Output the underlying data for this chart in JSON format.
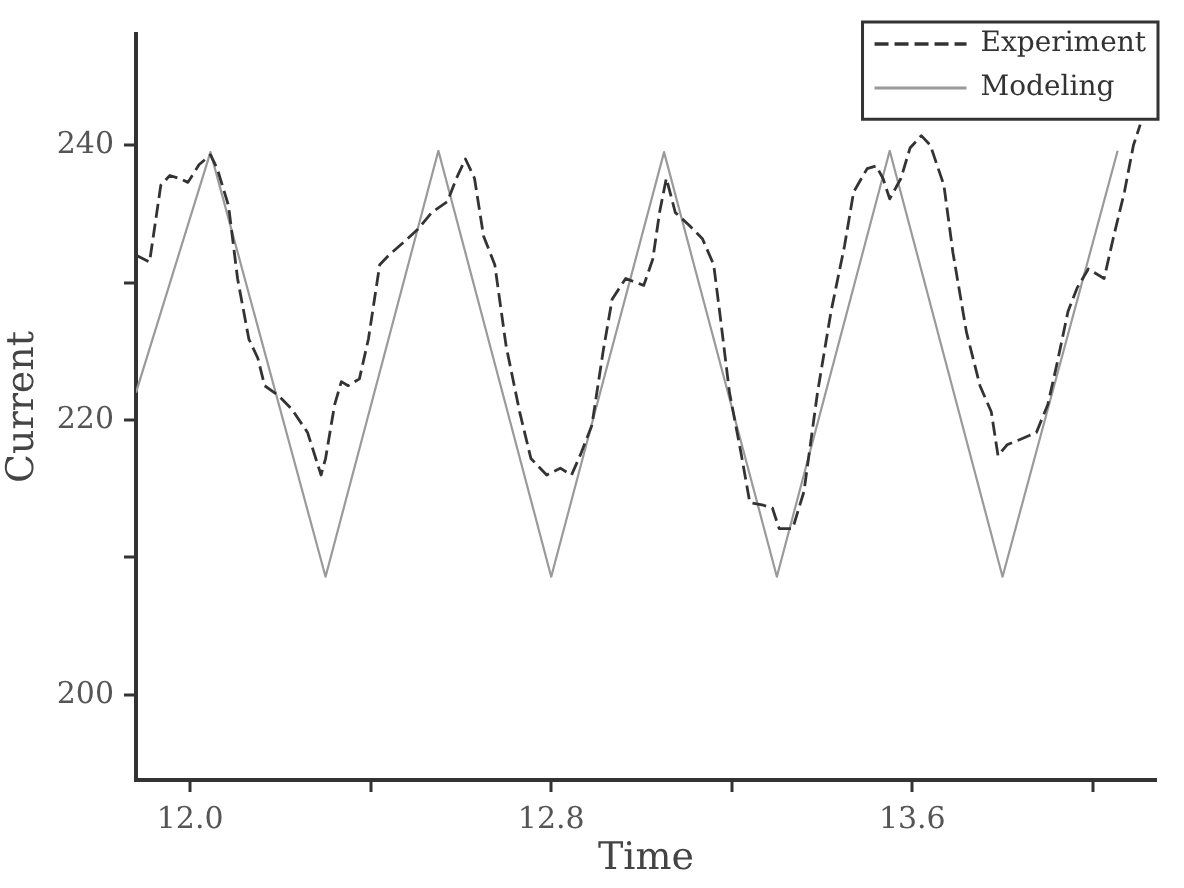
{
  "chart_data": {
    "type": "line",
    "xlabel": "Time",
    "ylabel": "Current",
    "xlim": [
      11.88,
      14.14
    ],
    "ylim": [
      193.8,
      248.1
    ],
    "xticks": [
      {
        "value": 12.0,
        "label": "12.0"
      },
      {
        "value": 12.4,
        "label": null
      },
      12.8,
      {
        "value": 13.2,
        "label": null
      },
      13.6,
      {
        "value": 14.0,
        "label": null
      }
    ],
    "yticks": [
      200,
      {
        "value": 210,
        "label": null
      },
      220,
      {
        "value": 230,
        "label": null
      },
      240
    ],
    "legend": "top right",
    "series": [
      {
        "name": "Experiment",
        "color": "#333333",
        "line_style": "dashed",
        "x": [
          11.88,
          11.91,
          11.935,
          11.955,
          11.975,
          11.995,
          12.02,
          12.045,
          12.06,
          12.085,
          12.105,
          12.13,
          12.15,
          12.165,
          12.195,
          12.225,
          12.26,
          12.29,
          12.3,
          12.32,
          12.335,
          12.35,
          12.375,
          12.395,
          12.42,
          12.44,
          12.475,
          12.505,
          12.535,
          12.57,
          12.59,
          12.61,
          12.63,
          12.65,
          12.675,
          12.7,
          12.73,
          12.755,
          12.79,
          12.82,
          12.845,
          12.865,
          12.89,
          12.915,
          12.935,
          12.965,
          13.005,
          13.025,
          13.04,
          13.055,
          13.075,
          13.105,
          13.135,
          13.16,
          13.175,
          13.195,
          13.22,
          13.24,
          13.27,
          13.29,
          13.305,
          13.335,
          13.36,
          13.39,
          13.42,
          13.45,
          13.47,
          13.5,
          13.52,
          13.535,
          13.55,
          13.575,
          13.595,
          13.62,
          13.64,
          13.67,
          13.69,
          13.72,
          13.75,
          13.775,
          13.79,
          13.81,
          13.84,
          13.875,
          13.9,
          13.92,
          13.945,
          13.965,
          13.99,
          14.025,
          14.045,
          14.07,
          14.09,
          14.105
        ],
        "values": [
          232.0,
          231.5,
          237.1,
          237.8,
          237.6,
          237.3,
          238.6,
          239.3,
          238.3,
          235.6,
          230.3,
          225.9,
          224.5,
          222.5,
          221.8,
          220.8,
          219.1,
          216.0,
          217.2,
          221.1,
          222.8,
          222.5,
          223.0,
          225.9,
          231.3,
          232.0,
          233.0,
          233.9,
          235.1,
          235.9,
          237.6,
          239.0,
          237.6,
          233.4,
          231.3,
          225.4,
          220.6,
          217.2,
          216.0,
          216.5,
          216.0,
          217.5,
          219.6,
          225.0,
          228.8,
          230.3,
          229.8,
          231.7,
          235.1,
          237.6,
          235.1,
          234.2,
          233.2,
          231.3,
          227.4,
          222.0,
          217.7,
          214.0,
          213.8,
          213.6,
          212.1,
          212.1,
          214.8,
          222.0,
          227.9,
          232.7,
          236.6,
          238.3,
          238.5,
          237.6,
          236.1,
          237.6,
          239.8,
          240.7,
          240.0,
          237.1,
          232.2,
          226.4,
          222.5,
          220.6,
          217.4,
          218.2,
          218.6,
          219.1,
          221.1,
          224.0,
          227.9,
          229.6,
          231.0,
          230.3,
          233.2,
          236.6,
          240.0,
          241.5
        ]
      },
      {
        "name": "Modeling",
        "color": "#9a9a9a",
        "line_style": "solid",
        "x": [
          11.88,
          12.045,
          12.3,
          12.55,
          12.8,
          13.05,
          13.3,
          13.55,
          13.8,
          14.055
        ],
        "values": [
          222.0,
          239.5,
          208.6,
          239.6,
          208.6,
          239.5,
          208.6,
          239.6,
          208.6,
          239.6
        ]
      }
    ]
  }
}
